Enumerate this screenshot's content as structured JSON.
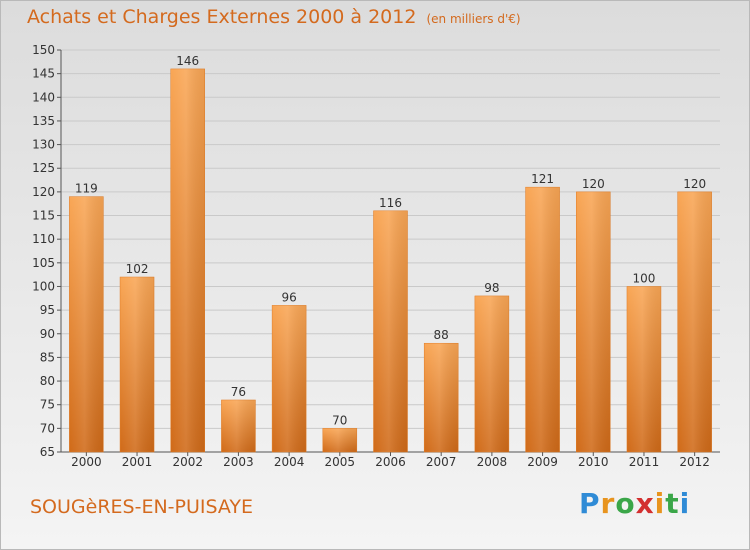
{
  "title": "Achats et Charges Externes 2000 à 2012",
  "subtitle": "(en milliers d'€)",
  "location": "SOUGèRES-EN-PUISAYE",
  "brand": {
    "letters": [
      "P",
      "r",
      "o",
      "x",
      "i",
      "t",
      "i"
    ],
    "colors": [
      "#2f8bd6",
      "#e8941e",
      "#3aa648",
      "#d32f2f",
      "#e8941e",
      "#3aa648",
      "#2f8bd6"
    ]
  },
  "chart_data": {
    "type": "bar",
    "categories": [
      "2000",
      "2001",
      "2002",
      "2003",
      "2004",
      "2005",
      "2006",
      "2007",
      "2008",
      "2009",
      "2010",
      "2011",
      "2012"
    ],
    "values": [
      119,
      102,
      146,
      76,
      96,
      70,
      116,
      88,
      98,
      121,
      120,
      100,
      120
    ],
    "ylim": [
      65,
      150
    ],
    "yticks": [
      65,
      70,
      75,
      80,
      85,
      90,
      95,
      100,
      105,
      110,
      115,
      120,
      125,
      130,
      135,
      140,
      145,
      150
    ],
    "grid": true,
    "bar_color": "#f0953d"
  }
}
